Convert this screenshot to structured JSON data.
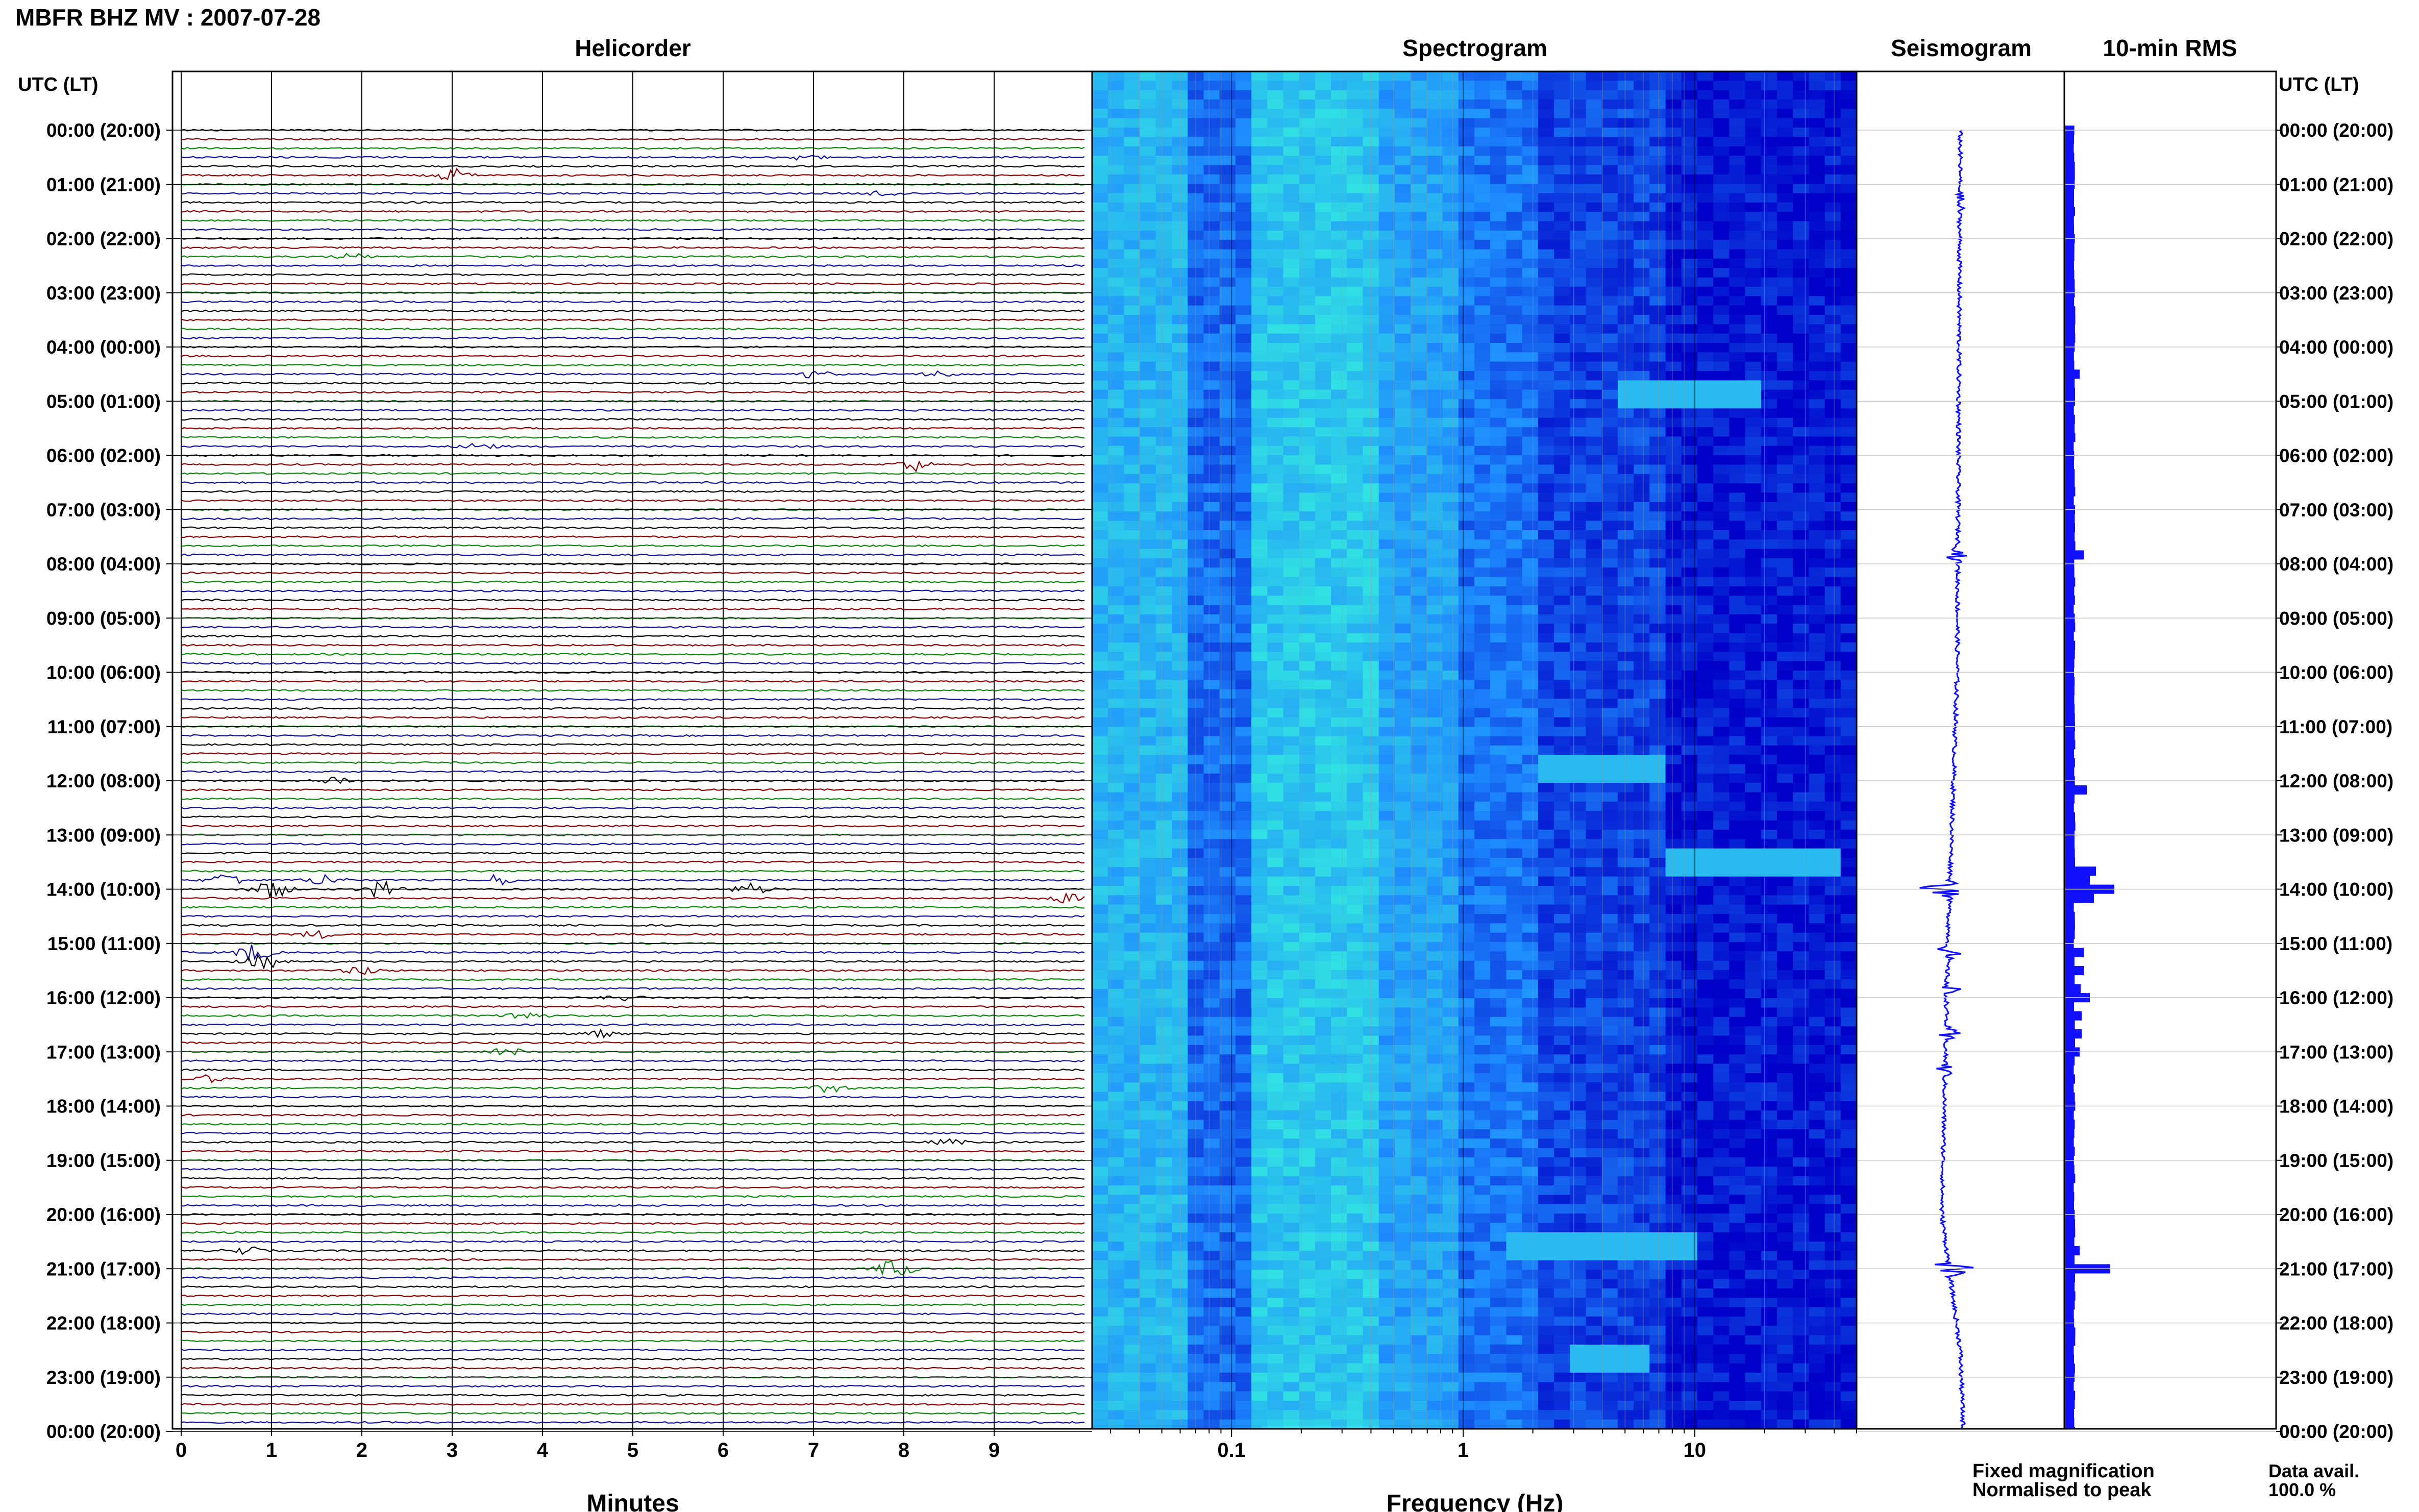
{
  "header": {
    "title": "MBFR BHZ MV : 2007-07-28"
  },
  "colors": {
    "trace_cycle": [
      "#000000",
      "#8b0000",
      "#0a8a0a",
      "#1010a0"
    ],
    "seismogram": "#1010ff",
    "rms": "#1010ff",
    "spectrogram_low": "#0000c8",
    "spectrogram_mid": "#1e8cff",
    "spectrogram_high": "#33e8e0",
    "fixed_magnification": "#1010ff",
    "normalised_to_peak": "#ff1010"
  },
  "chart_data": [
    {
      "type": "helicorder",
      "title": "Helicorder",
      "xlabel": "Minutes",
      "xlim": [
        0,
        10
      ],
      "x_ticks": [
        "0",
        "1",
        "2",
        "3",
        "4",
        "5",
        "6",
        "7",
        "8",
        "9"
      ],
      "ylabel_left": "UTC (LT)",
      "ylabel_right": "UTC (LT)",
      "rows_per_hour": 6,
      "row_count": 145,
      "hour_labels": [
        "00:00 (20:00)",
        "01:00 (21:00)",
        "02:00 (22:00)",
        "03:00 (23:00)",
        "04:00 (00:00)",
        "05:00 (01:00)",
        "06:00 (02:00)",
        "07:00 (03:00)",
        "08:00 (04:00)",
        "09:00 (05:00)",
        "10:00 (06:00)",
        "11:00 (07:00)",
        "12:00 (08:00)",
        "13:00 (09:00)",
        "14:00 (10:00)",
        "15:00 (11:00)",
        "16:00 (12:00)",
        "17:00 (13:00)",
        "18:00 (14:00)",
        "19:00 (15:00)",
        "20:00 (16:00)",
        "21:00 (17:00)",
        "22:00 (18:00)",
        "23:00 (19:00)",
        "00:00 (20:00)"
      ],
      "events": [
        {
          "row": 3,
          "minute": 6.9,
          "amp": 0.4
        },
        {
          "row": 5,
          "minute": 3.0,
          "amp": 0.9
        },
        {
          "row": 7,
          "minute": 7.8,
          "amp": 0.5
        },
        {
          "row": 14,
          "minute": 1.9,
          "amp": 0.4
        },
        {
          "row": 27,
          "minute": 7.0,
          "amp": 0.5
        },
        {
          "row": 27,
          "minute": 8.4,
          "amp": 0.4
        },
        {
          "row": 35,
          "minute": 3.3,
          "amp": 0.5
        },
        {
          "row": 37,
          "minute": 8.1,
          "amp": 0.9
        },
        {
          "row": 72,
          "minute": 1.7,
          "amp": 0.6
        },
        {
          "row": 83,
          "minute": 0.5,
          "amp": 1.0
        },
        {
          "row": 83,
          "minute": 1.6,
          "amp": 0.9
        },
        {
          "row": 83,
          "minute": 3.5,
          "amp": 0.7
        },
        {
          "row": 84,
          "minute": 1.0,
          "amp": 1.3
        },
        {
          "row": 84,
          "minute": 2.2,
          "amp": 1.2
        },
        {
          "row": 84,
          "minute": 6.3,
          "amp": 0.8
        },
        {
          "row": 85,
          "minute": 9.8,
          "amp": 0.6
        },
        {
          "row": 89,
          "minute": 1.5,
          "amp": 0.5
        },
        {
          "row": 91,
          "minute": 0.8,
          "amp": 1.2
        },
        {
          "row": 92,
          "minute": 0.9,
          "amp": 1.1
        },
        {
          "row": 93,
          "minute": 2.0,
          "amp": 0.6
        },
        {
          "row": 96,
          "minute": 4.9,
          "amp": 0.5
        },
        {
          "row": 98,
          "minute": 3.8,
          "amp": 0.8
        },
        {
          "row": 100,
          "minute": 4.6,
          "amp": 0.5
        },
        {
          "row": 102,
          "minute": 3.6,
          "amp": 0.6
        },
        {
          "row": 105,
          "minute": 0.3,
          "amp": 0.5
        },
        {
          "row": 106,
          "minute": 7.2,
          "amp": 0.6
        },
        {
          "row": 112,
          "minute": 8.5,
          "amp": 0.4
        },
        {
          "row": 124,
          "minute": 0.7,
          "amp": 0.6
        },
        {
          "row": 126,
          "minute": 7.9,
          "amp": 1.4
        }
      ]
    },
    {
      "type": "heatmap",
      "title": "Spectrogram",
      "xlabel": "Frequency (Hz)",
      "x_scale": "log",
      "xlim": [
        0.025,
        50
      ],
      "x_ticks": [
        {
          "value": 0.1,
          "label": "0.1"
        },
        {
          "value": 1,
          "label": "1"
        },
        {
          "value": 10,
          "label": "10"
        }
      ],
      "bands": [
        {
          "hz": [
            0.025,
            0.06
          ],
          "level": 0.72
        },
        {
          "hz": [
            0.06,
            0.13
          ],
          "level": 0.38
        },
        {
          "hz": [
            0.13,
            0.45
          ],
          "level": 0.82
        },
        {
          "hz": [
            0.45,
            1.0
          ],
          "level": 0.62
        },
        {
          "hz": [
            1.0,
            2.0
          ],
          "level": 0.42
        },
        {
          "hz": [
            2.0,
            8.0
          ],
          "level": 0.24
        },
        {
          "hz": [
            8.0,
            50
          ],
          "level": 0.08
        }
      ],
      "strong_rows": [
        {
          "row": 34,
          "hz": [
            5,
            20
          ]
        },
        {
          "row": 74,
          "hz": [
            2,
            8
          ]
        },
        {
          "row": 84,
          "hz": [
            8,
            45
          ]
        },
        {
          "row": 125,
          "hz": [
            1.5,
            10
          ]
        },
        {
          "row": 137,
          "hz": [
            3,
            6
          ]
        }
      ]
    },
    {
      "type": "line",
      "title": "Seismogram",
      "note": "long-period trace, one value per 10-min row",
      "drift": [
        {
          "row": 0,
          "value": 0.0
        },
        {
          "row": 60,
          "value": -0.1
        },
        {
          "row": 90,
          "value": -0.4
        },
        {
          "row": 120,
          "value": -0.6
        },
        {
          "row": 135,
          "value": 0.0
        },
        {
          "row": 144,
          "value": 0.1
        }
      ],
      "bursts": [
        {
          "row": 8,
          "amp": 0.25
        },
        {
          "row": 47,
          "amp": 0.25
        },
        {
          "row": 84,
          "amp": 0.7
        },
        {
          "row": 91,
          "amp": 0.3
        },
        {
          "row": 95,
          "amp": 0.3
        },
        {
          "row": 100,
          "amp": 0.3
        },
        {
          "row": 104,
          "amp": 0.2
        },
        {
          "row": 126,
          "amp": 0.55
        }
      ]
    },
    {
      "type": "bar",
      "orientation": "horizontal",
      "title": "10-min RMS",
      "xlim": [
        0,
        4
      ],
      "baseline": 0.45,
      "peaks": [
        {
          "row": 27,
          "value": 0.7
        },
        {
          "row": 47,
          "value": 0.9
        },
        {
          "row": 73,
          "value": 1.05
        },
        {
          "row": 82,
          "value": 1.5
        },
        {
          "row": 83,
          "value": 1.2
        },
        {
          "row": 84,
          "value": 2.4
        },
        {
          "row": 85,
          "value": 1.4
        },
        {
          "row": 91,
          "value": 0.9
        },
        {
          "row": 93,
          "value": 0.9
        },
        {
          "row": 95,
          "value": 0.75
        },
        {
          "row": 96,
          "value": 1.2
        },
        {
          "row": 98,
          "value": 0.8
        },
        {
          "row": 100,
          "value": 0.8
        },
        {
          "row": 102,
          "value": 0.7
        },
        {
          "row": 124,
          "value": 0.7
        },
        {
          "row": 126,
          "value": 2.2
        }
      ]
    }
  ],
  "footer": {
    "legend_fixed": "Fixed magnification",
    "legend_normalised": "Normalised to peak",
    "data_avail_label": "Data avail.",
    "data_avail_value": "100.0 %"
  }
}
